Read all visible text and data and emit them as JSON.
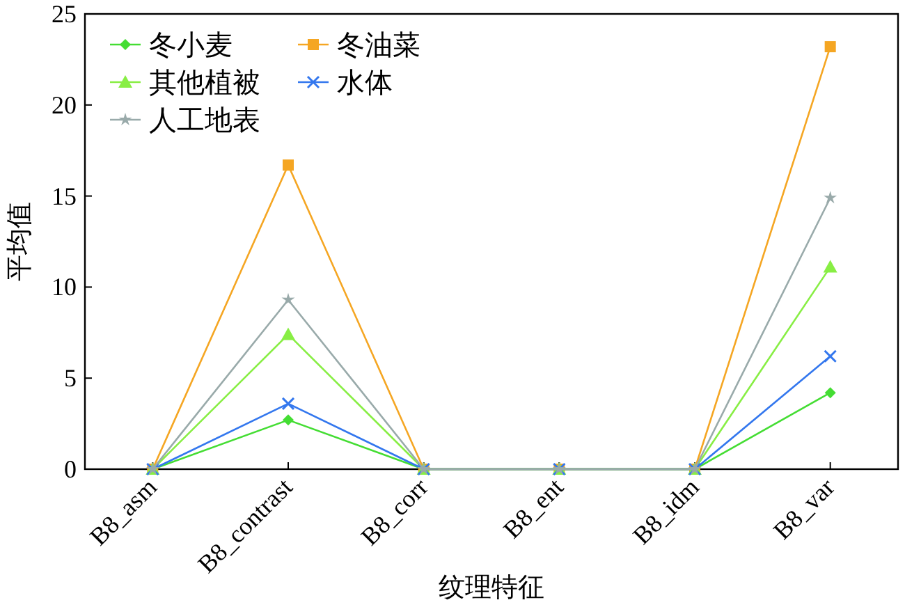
{
  "chart_data": {
    "type": "line",
    "xlabel": "纹理特征",
    "ylabel": "平均值",
    "categories": [
      "B8_asm",
      "B8_contrast",
      "B8_corr",
      "B8_ent",
      "B8_idm",
      "B8_var"
    ],
    "ylim": [
      0,
      25
    ],
    "yticks": [
      0,
      5,
      10,
      15,
      20,
      25
    ],
    "grid": false,
    "legend": "top left",
    "line_style": "solid",
    "series": [
      {
        "name": "冬小麦",
        "color": "#44dd33",
        "marker": "diamond",
        "values": [
          0,
          2.7,
          0,
          0,
          0,
          4.2
        ]
      },
      {
        "name": "冬油菜",
        "color": "#f5a623",
        "marker": "square",
        "values": [
          0,
          16.7,
          0,
          0,
          0,
          23.2
        ]
      },
      {
        "name": "其他植被",
        "color": "#88ee44",
        "marker": "triangle",
        "values": [
          0,
          7.4,
          0,
          0,
          0,
          11.1
        ]
      },
      {
        "name": "水体",
        "color": "#3377ee",
        "marker": "cross",
        "values": [
          0,
          3.6,
          0,
          0,
          0,
          6.2
        ]
      },
      {
        "name": "人工地表",
        "color": "#99aaaa",
        "marker": "star",
        "values": [
          0,
          9.3,
          0,
          0,
          0,
          14.9
        ]
      }
    ]
  }
}
